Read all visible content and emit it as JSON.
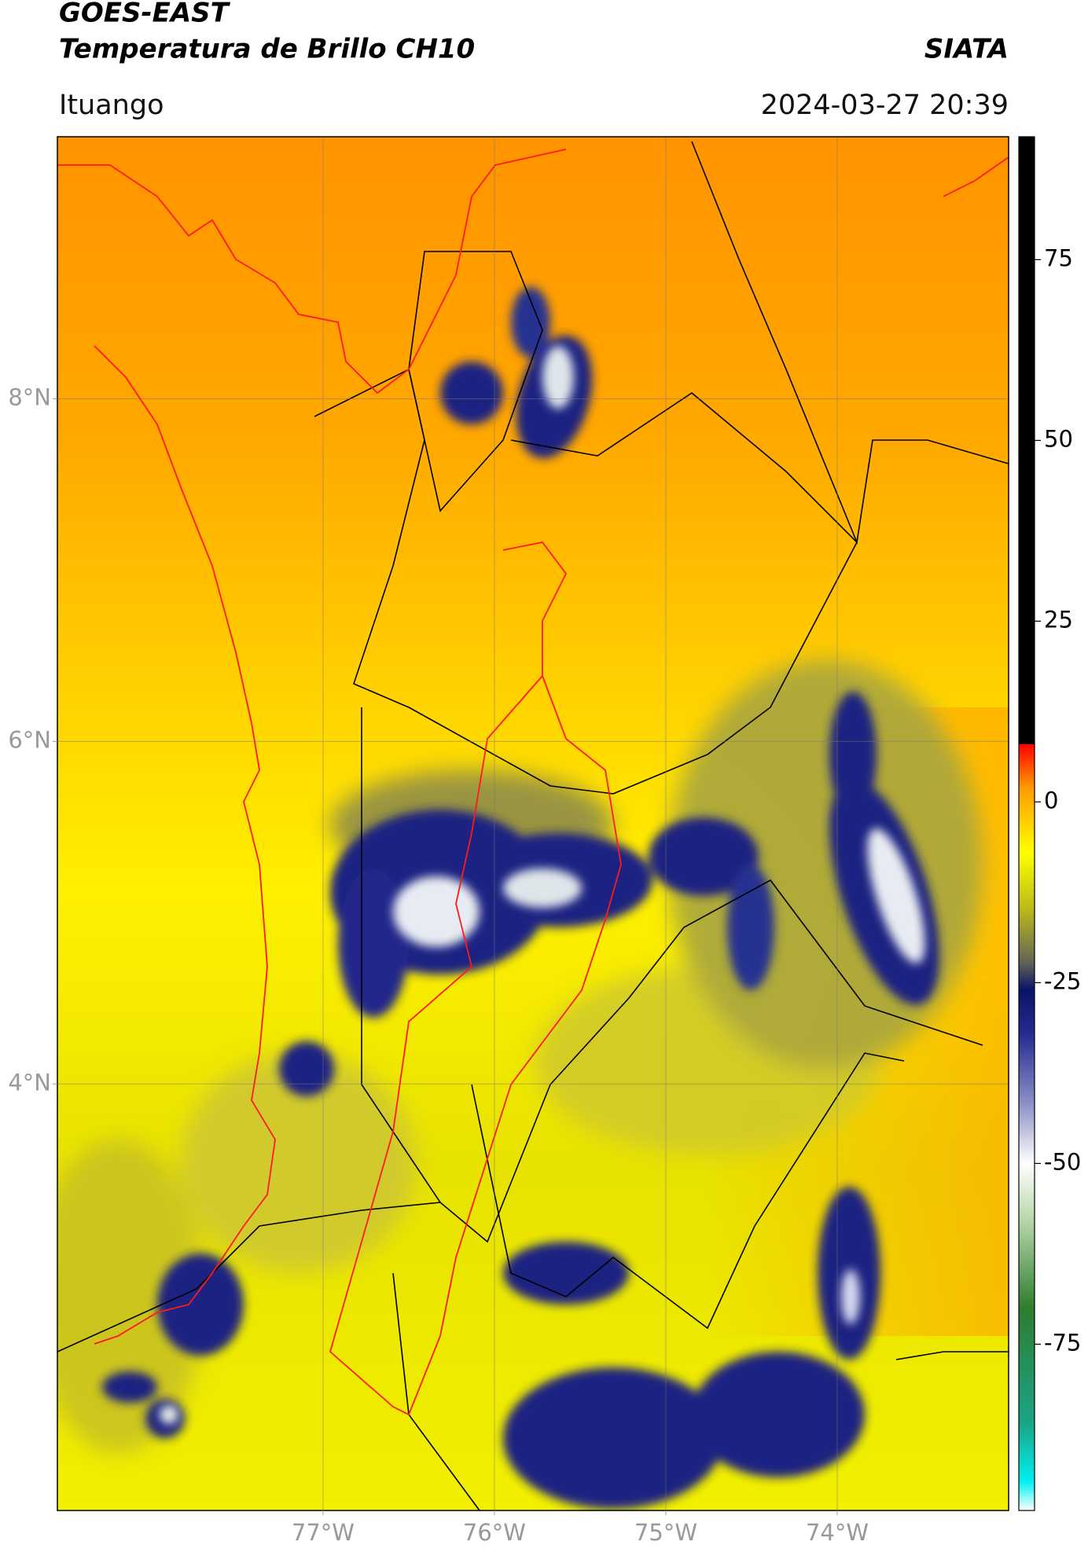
{
  "chart_data": {
    "type": "map",
    "title": "GOES-EAST",
    "subtitle": "Temperatura de Brillo CH10",
    "source": "SIATA",
    "location": "Ituango",
    "datetime": "2024-03-27 20:39",
    "xlim": [
      -78.55,
      -73.0
    ],
    "ylim": [
      1.51,
      9.53
    ],
    "xticks": [
      {
        "value": -77,
        "label": "77°W"
      },
      {
        "value": -76,
        "label": "76°W"
      },
      {
        "value": -75,
        "label": "75°W"
      },
      {
        "value": -74,
        "label": "74°W"
      }
    ],
    "yticks": [
      {
        "value": 8,
        "label": "8°N"
      },
      {
        "value": 6,
        "label": "6°N"
      },
      {
        "value": 4,
        "label": "4°N"
      }
    ],
    "grid": true,
    "colorbar": {
      "clim": [
        -98,
        92
      ],
      "ticks": [
        75,
        50,
        25,
        0,
        -25,
        -50,
        -75
      ],
      "colormap": [
        {
          "value": -98,
          "color": "#ffffff"
        },
        {
          "value": -94,
          "color": "#00f0f0"
        },
        {
          "value": -86,
          "color": "#1aa58a"
        },
        {
          "value": -70,
          "color": "#2e7d2e"
        },
        {
          "value": -58,
          "color": "#b5d6a8"
        },
        {
          "value": -50,
          "color": "#ffffff"
        },
        {
          "value": -42,
          "color": "#8f93c8"
        },
        {
          "value": -32,
          "color": "#232b8f"
        },
        {
          "value": -26,
          "color": "#0a1466"
        },
        {
          "value": -22,
          "color": "#666655"
        },
        {
          "value": -15,
          "color": "#b9b81a"
        },
        {
          "value": -7,
          "color": "#ffff00"
        },
        {
          "value": 2,
          "color": "#ff9a00"
        },
        {
          "value": 6,
          "color": "#ff3300"
        },
        {
          "value": 8,
          "color": "#ff0000"
        },
        {
          "value": 8,
          "color": "#000000"
        },
        {
          "value": 92,
          "color": "#000000"
        }
      ]
    }
  }
}
